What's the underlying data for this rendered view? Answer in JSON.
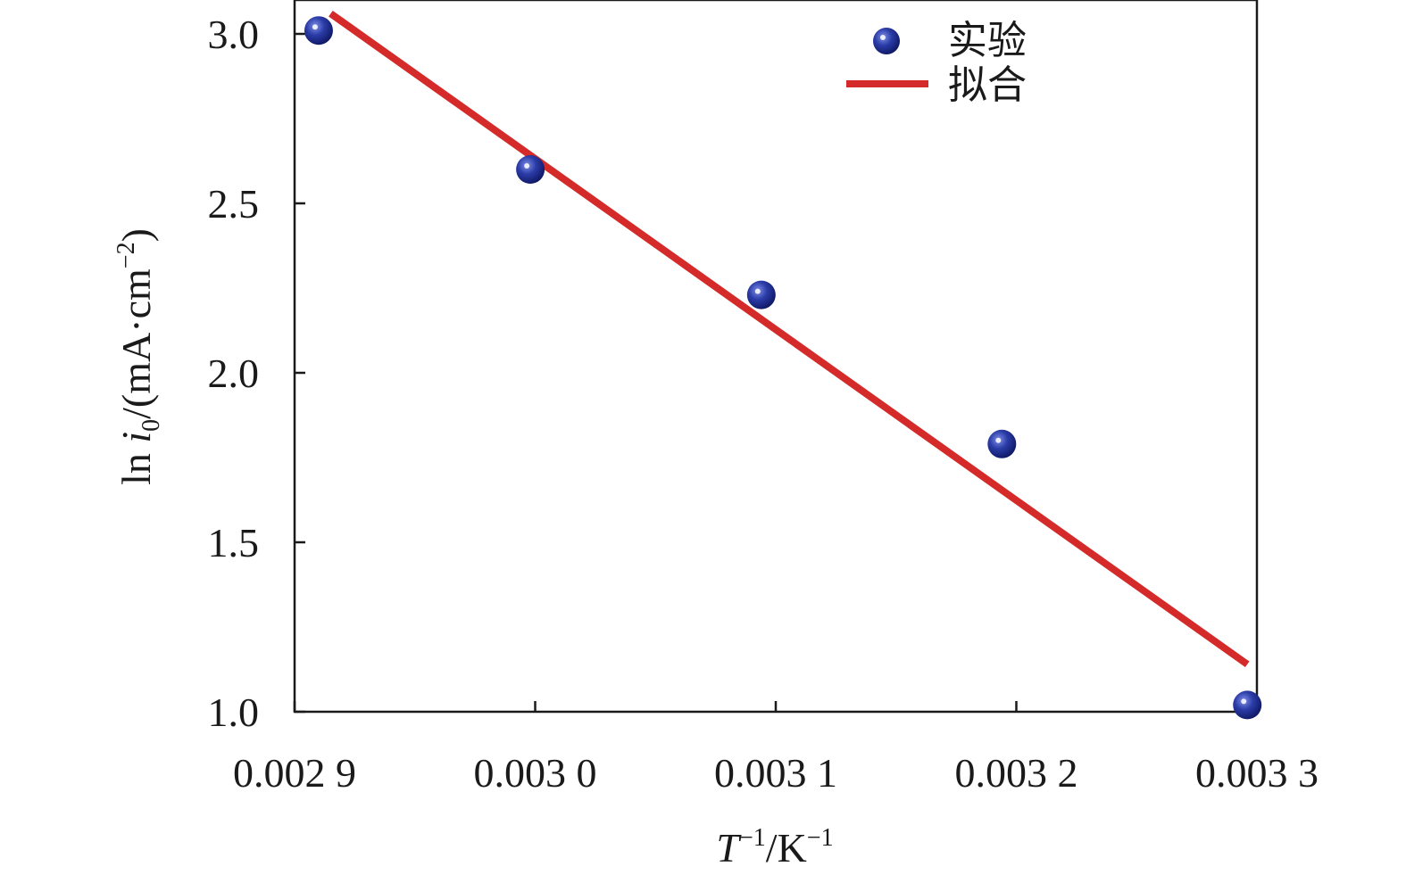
{
  "chart_data": {
    "type": "scatter",
    "xlabel": {
      "var": "T",
      "sup": "−1",
      "unit": "/K",
      "unit_sup": "−1"
    },
    "ylabel": {
      "pre": "ln ",
      "var": "i",
      "sub": "0",
      "unit": "/(mA·cm",
      "unit_sup": "−2",
      "close": ")"
    },
    "xlim": [
      0.0029,
      0.0033
    ],
    "ylim": [
      1.0,
      3.1
    ],
    "x_ticks": [
      {
        "value": 0.0029,
        "label": "0.002 9"
      },
      {
        "value": 0.003,
        "label": "0.003 0"
      },
      {
        "value": 0.0031,
        "label": "0.003 1"
      },
      {
        "value": 0.0032,
        "label": "0.003 2"
      },
      {
        "value": 0.0033,
        "label": "0.003 3"
      }
    ],
    "y_ticks": [
      {
        "value": 1.0,
        "label": "1.0"
      },
      {
        "value": 1.5,
        "label": "1.5"
      },
      {
        "value": 2.0,
        "label": "2.0"
      },
      {
        "value": 2.5,
        "label": "2.5"
      },
      {
        "value": 3.0,
        "label": "3.0"
      }
    ],
    "series": [
      {
        "name": "实验",
        "kind": "scatter",
        "color": "#1f2f9a",
        "points": [
          {
            "x": 0.00291,
            "y": 3.01
          },
          {
            "x": 0.002998,
            "y": 2.6
          },
          {
            "x": 0.003094,
            "y": 2.23
          },
          {
            "x": 0.003194,
            "y": 1.79
          },
          {
            "x": 0.003296,
            "y": 1.02
          }
        ]
      },
      {
        "name": "拟合",
        "kind": "line",
        "color": "#d42a2a",
        "points": [
          {
            "x": 0.002915,
            "y": 3.06
          },
          {
            "x": 0.003296,
            "y": 1.14
          }
        ]
      }
    ],
    "grid": false,
    "legend_position": "top-right"
  }
}
